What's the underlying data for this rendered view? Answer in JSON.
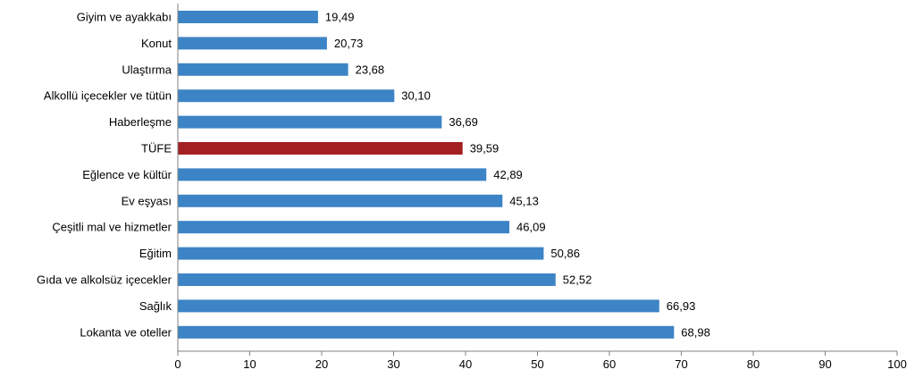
{
  "chart_data": {
    "type": "bar",
    "orientation": "horizontal",
    "categories": [
      "Giyim ve ayakkabı",
      "Konut",
      "Ulaştırma",
      "Alkollü içecekler ve tütün",
      "Haberleşme",
      "TÜFE",
      "Eğlence ve kültür",
      "Ev eşyası",
      "Çeşitli mal ve hizmetler",
      "Eğitim",
      "Gıda ve alkolsüz içecekler",
      "Sağlık",
      "Lokanta ve oteller"
    ],
    "values": [
      19.49,
      20.73,
      23.68,
      30.1,
      36.69,
      39.59,
      42.89,
      45.13,
      46.09,
      50.86,
      52.52,
      66.93,
      68.98
    ],
    "value_labels": [
      "19,49",
      "20,73",
      "23,68",
      "30,10",
      "36,69",
      "39,59",
      "42,89",
      "45,13",
      "46,09",
      "50,86",
      "52,52",
      "66,93",
      "68,98"
    ],
    "highlight_category": "TÜFE",
    "xlim": [
      0,
      100
    ],
    "xticks": [
      0,
      10,
      20,
      30,
      40,
      50,
      60,
      70,
      80,
      90,
      100
    ],
    "title": "",
    "xlabel": "",
    "ylabel": "",
    "grid": false,
    "legend": "none",
    "colors": {
      "bar": "#3c84c6",
      "highlight": "#a31f22",
      "axis": "#808080",
      "text": "#000000"
    }
  }
}
